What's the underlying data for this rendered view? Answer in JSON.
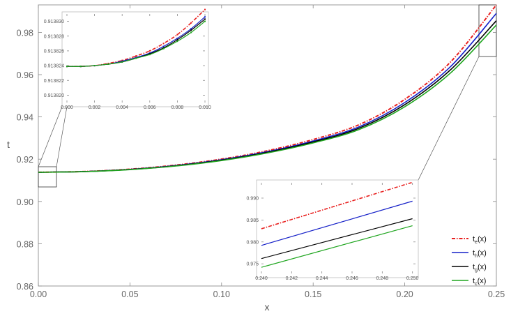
{
  "chart_data": [
    {
      "id": "main",
      "type": "line",
      "xlabel": "x",
      "ylabel": "t",
      "xlim": [
        0.0,
        0.25
      ],
      "ylim": [
        0.86,
        0.993
      ],
      "x_ticks": [
        "0.00",
        "0.05",
        "0.10",
        "0.15",
        "0.20",
        "0.25"
      ],
      "y_ticks": [
        "0.86",
        "0.88",
        "0.90",
        "0.92",
        "0.94",
        "0.96",
        "0.98"
      ],
      "grid": false,
      "legend_position": "bottom-right",
      "x": [
        0.0,
        0.025,
        0.05,
        0.075,
        0.1,
        0.125,
        0.15,
        0.175,
        0.2,
        0.225,
        0.25
      ],
      "series": [
        {
          "name": "t_e(x)",
          "label_main": "t",
          "label_sub": "e",
          "color": "#e8201f",
          "dash": "dashdot",
          "values": [
            0.91383,
            0.91418,
            0.91528,
            0.9172,
            0.92005,
            0.924,
            0.9293,
            0.9363,
            0.9483,
            0.966,
            0.993
          ]
        },
        {
          "name": "t_h(x)",
          "label_main": "t",
          "label_sub": "h",
          "color": "#1520c8",
          "dash": "solid",
          "values": [
            0.91383,
            0.91415,
            0.91518,
            0.917,
            0.91975,
            0.92355,
            0.9286,
            0.9353,
            0.9468,
            0.9638,
            0.989
          ]
        },
        {
          "name": "t_g(x)",
          "label_main": "t",
          "label_sub": "g",
          "color": "#000000",
          "dash": "solid",
          "values": [
            0.91383,
            0.91413,
            0.91512,
            0.91688,
            0.91955,
            0.92325,
            0.92815,
            0.93465,
            0.9458,
            0.9623,
            0.9855
          ]
        },
        {
          "name": "t_c(x)",
          "label_main": "t",
          "label_sub": "c",
          "color": "#1ea51e",
          "dash": "solid",
          "values": [
            0.91383,
            0.91411,
            0.91506,
            0.91676,
            0.91935,
            0.92295,
            0.9277,
            0.934,
            0.9448,
            0.9608,
            0.9835
          ]
        }
      ]
    },
    {
      "id": "inset-left",
      "type": "line",
      "xlim": [
        0.0,
        0.01
      ],
      "ylim": [
        0.913819,
        0.913831
      ],
      "x_ticks": [
        "0.000",
        "0.002",
        "0.004",
        "0.006",
        "0.008",
        "0.010"
      ],
      "y_ticks": [
        "0.913820",
        "0.913822",
        "0.913824",
        "0.913826",
        "0.913828",
        "0.913830"
      ],
      "x": [
        0.0,
        0.001,
        0.002,
        0.003,
        0.004,
        0.005,
        0.006,
        0.007,
        0.008,
        0.009,
        0.01
      ],
      "series": [
        {
          "name": "t_e(x)",
          "values": [
            0.9138239,
            0.9138239,
            0.913824,
            0.9138243,
            0.9138247,
            0.9138253,
            0.913826,
            0.913827,
            0.9138282,
            0.9138298,
            0.9138316
          ]
        },
        {
          "name": "t_h(x)",
          "values": [
            0.9138239,
            0.9138239,
            0.913824,
            0.9138242,
            0.9138246,
            0.9138251,
            0.9138257,
            0.9138266,
            0.9138277,
            0.913829,
            0.9138306
          ]
        },
        {
          "name": "t_g(x)",
          "values": [
            0.9138239,
            0.9138239,
            0.913824,
            0.9138242,
            0.9138245,
            0.913825,
            0.9138256,
            0.9138264,
            0.9138275,
            0.9138288,
            0.9138303
          ]
        },
        {
          "name": "t_c(x)",
          "values": [
            0.9138239,
            0.9138239,
            0.913824,
            0.9138242,
            0.9138245,
            0.913825,
            0.9138255,
            0.9138263,
            0.9138273,
            0.9138285,
            0.91383
          ]
        }
      ]
    },
    {
      "id": "inset-right",
      "type": "line",
      "xlim": [
        0.24,
        0.2502
      ],
      "ylim": [
        0.9728,
        0.9935
      ],
      "x_ticks": [
        "0.240",
        "0.242",
        "0.244",
        "0.246",
        "0.248",
        "0.250"
      ],
      "y_ticks": [
        "0.975",
        "0.980",
        "0.985",
        "0.990"
      ],
      "x": [
        0.24,
        0.25
      ],
      "series": [
        {
          "name": "t_e(x)",
          "values": [
            0.983,
            0.9936
          ]
        },
        {
          "name": "t_h(x)",
          "values": [
            0.9792,
            0.9893
          ]
        },
        {
          "name": "t_g(x)",
          "values": [
            0.9762,
            0.9853
          ]
        },
        {
          "name": "t_c(x)",
          "values": [
            0.9742,
            0.9837
          ]
        }
      ]
    }
  ]
}
